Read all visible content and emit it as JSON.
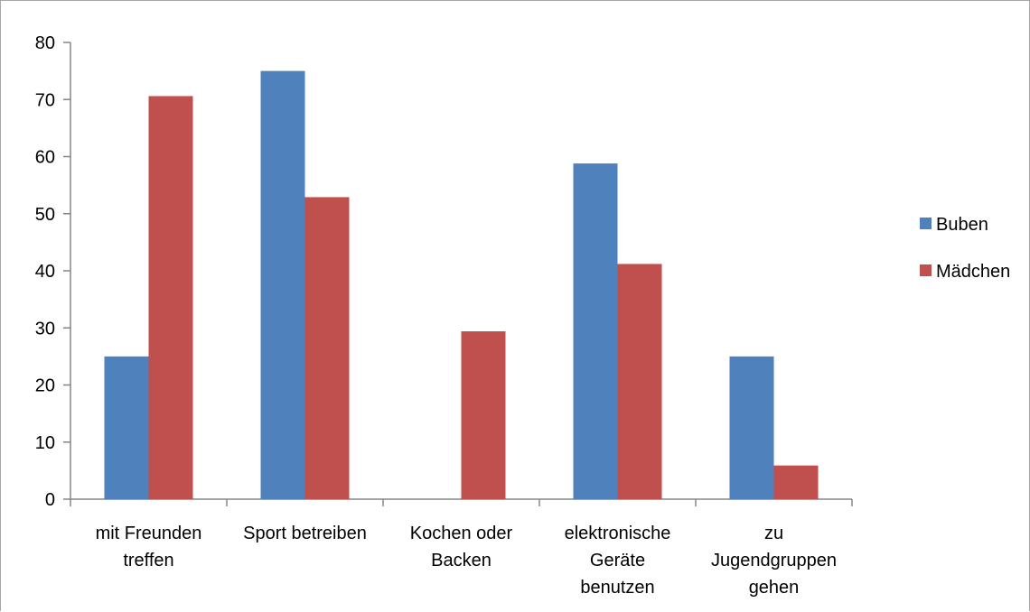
{
  "chart_data": {
    "type": "bar",
    "title": "",
    "xlabel": "",
    "ylabel": "",
    "categories": [
      [
        "mit Freunden",
        "treffen"
      ],
      [
        "Sport betreiben"
      ],
      [
        "Kochen oder",
        "Backen"
      ],
      [
        "elektronische",
        "Geräte",
        "benutzen"
      ],
      [
        "zu",
        "Jugendgruppen",
        "gehen"
      ]
    ],
    "series": [
      {
        "name": "Buben",
        "color": "#4f81bd",
        "values": [
          25,
          75,
          0,
          58.8,
          25
        ]
      },
      {
        "name": "Mädchen",
        "color": "#c0504d",
        "values": [
          70.6,
          52.9,
          29.4,
          41.2,
          5.9
        ]
      }
    ],
    "ylim": [
      0,
      80
    ],
    "yticks": [
      0,
      10,
      20,
      30,
      40,
      50,
      60,
      70,
      80
    ],
    "grid": false,
    "legend": "right"
  }
}
